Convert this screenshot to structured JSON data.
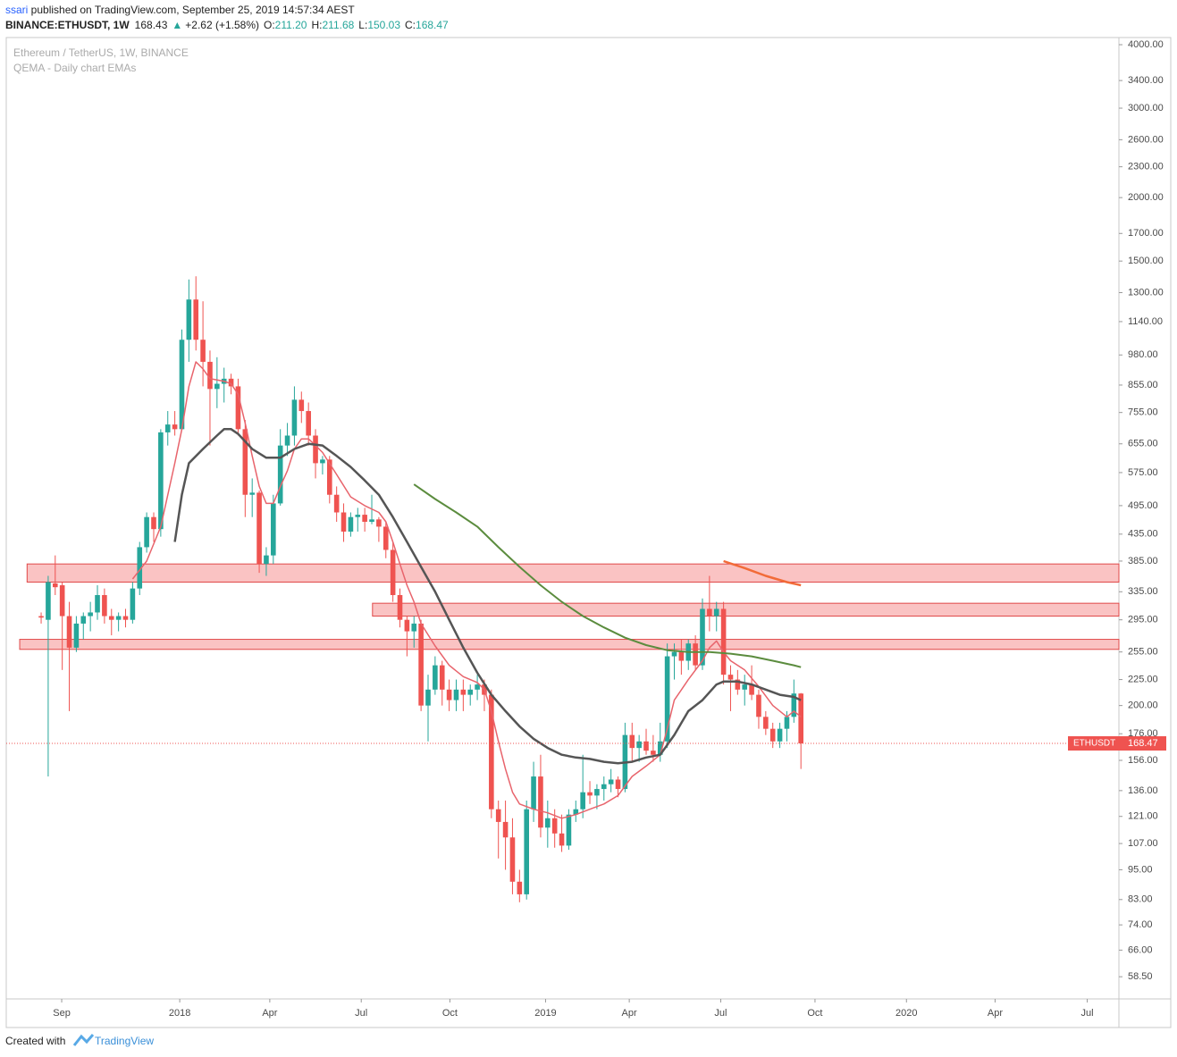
{
  "header": {
    "author": "ssari",
    "published": " published on TradingView.com, September 25, 2019 14:57:34 AEST",
    "symbol": "BINANCE:ETHUSDT, 1W",
    "last": "168.43",
    "change": "+2.62 (+1.58%)",
    "ohlc": [
      {
        "label": "O:",
        "value": "211.20"
      },
      {
        "label": "H:",
        "value": "211.68"
      },
      {
        "label": "L:",
        "value": "150.03"
      },
      {
        "label": "C:",
        "value": "168.47"
      }
    ]
  },
  "footer": {
    "created": "Created with",
    "brand": "TradingView"
  },
  "chart_data": {
    "type": "candlestick",
    "legend": [
      "Ethereum / TetherUS, 1W, BINANCE",
      "QEMA - Daily chart EMAs"
    ],
    "symbol_label": "ETHUSDT",
    "log_scale": true,
    "ylim": [
      52.9,
      4132
    ],
    "xlim": [
      -4.96,
      153.2
    ],
    "yticks": [
      {
        "value": 4000,
        "label": "4000.00"
      },
      {
        "value": 3400,
        "label": "3400.00"
      },
      {
        "value": 3000,
        "label": "3000.00"
      },
      {
        "value": 2600,
        "label": "2600.00"
      },
      {
        "value": 2300,
        "label": "2300.00"
      },
      {
        "value": 2000,
        "label": "2000.00"
      },
      {
        "value": 1700,
        "label": "1700.00"
      },
      {
        "value": 1500,
        "label": "1500.00"
      },
      {
        "value": 1300,
        "label": "1300.00"
      },
      {
        "value": 1140,
        "label": "1140.00"
      },
      {
        "value": 980,
        "label": "980.00"
      },
      {
        "value": 855,
        "label": "855.00"
      },
      {
        "value": 755,
        "label": "755.00"
      },
      {
        "value": 655,
        "label": "655.00"
      },
      {
        "value": 575,
        "label": "575.00"
      },
      {
        "value": 495,
        "label": "495.00"
      },
      {
        "value": 435,
        "label": "435.00"
      },
      {
        "value": 385,
        "label": "385.00"
      },
      {
        "value": 335,
        "label": "335.00"
      },
      {
        "value": 295,
        "label": "295.00"
      },
      {
        "value": 255,
        "label": "255.00"
      },
      {
        "value": 225,
        "label": "225.00"
      },
      {
        "value": 200,
        "label": "200.00"
      },
      {
        "value": 176,
        "label": "176.00"
      },
      {
        "value": 156,
        "label": "156.00"
      },
      {
        "value": 136,
        "label": "136.00"
      },
      {
        "value": 121,
        "label": "121.00"
      },
      {
        "value": 107,
        "label": "107.00"
      },
      {
        "value": 95,
        "label": "95.00"
      },
      {
        "value": 83,
        "label": "83.00"
      },
      {
        "value": 74,
        "label": "74.00"
      },
      {
        "value": 66,
        "label": "66.00"
      },
      {
        "value": 58.5,
        "label": "58.50"
      }
    ],
    "xticks": [
      {
        "value": 2.92,
        "label": "Sep"
      },
      {
        "value": 19.7,
        "label": "2018"
      },
      {
        "value": 32.5,
        "label": "Apr"
      },
      {
        "value": 45.5,
        "label": "Jul"
      },
      {
        "value": 58.1,
        "label": "Oct"
      },
      {
        "value": 71.7,
        "label": "2019"
      },
      {
        "value": 83.6,
        "label": "Apr"
      },
      {
        "value": 96.6,
        "label": "Jul"
      },
      {
        "value": 110.0,
        "label": "Oct"
      },
      {
        "value": 123.0,
        "label": "2020"
      },
      {
        "value": 135.6,
        "label": "Apr"
      },
      {
        "value": 148.7,
        "label": "Jul"
      }
    ],
    "up_color": "#26a69a",
    "down_color": "#ef5350",
    "series": [
      {
        "open": [
          300,
          295,
          348,
          345,
          300,
          260,
          290,
          300,
          305,
          330,
          300,
          295,
          300,
          295,
          340,
          410,
          470,
          445,
          690,
          715,
          700,
          1050,
          1260,
          1050,
          950,
          840,
          860,
          880,
          850,
          700,
          520,
          525,
          380,
          395,
          500,
          650,
          680,
          800,
          760,
          680,
          600,
          610,
          520,
          480,
          440,
          470,
          475,
          460,
          465,
          450,
          405,
          330,
          295,
          280,
          290,
          200,
          215,
          240,
          215,
          205,
          215,
          210,
          215,
          220,
          210,
          125,
          118,
          110,
          90,
          85,
          125,
          145,
          115,
          120,
          112,
          106,
          122,
          125,
          135,
          133,
          137,
          140,
          143,
          137,
          175,
          165,
          170,
          163,
          160,
          170,
          250,
          255,
          245,
          265,
          240,
          310,
          300,
          310,
          230,
          225,
          215,
          220,
          210,
          190,
          180,
          170,
          180,
          190,
          211.2
        ],
        "high": [
          305,
          360,
          395,
          350,
          320,
          300,
          305,
          320,
          345,
          340,
          310,
          305,
          310,
          350,
          420,
          480,
          480,
          700,
          760,
          760,
          1100,
          1380,
          1400,
          1250,
          1000,
          970,
          925,
          900,
          880,
          730,
          560,
          530,
          410,
          520,
          700,
          720,
          850,
          830,
          790,
          700,
          620,
          620,
          540,
          500,
          480,
          490,
          490,
          520,
          470,
          460,
          420,
          340,
          300,
          300,
          295,
          230,
          250,
          245,
          225,
          225,
          225,
          220,
          230,
          225,
          215,
          130,
          130,
          120,
          95,
          130,
          155,
          160,
          130,
          125,
          122,
          125,
          130,
          160,
          142,
          140,
          145,
          150,
          145,
          185,
          185,
          175,
          180,
          175,
          185,
          265,
          265,
          270,
          270,
          275,
          325,
          360,
          320,
          320,
          240,
          235,
          230,
          240,
          215,
          195,
          185,
          185,
          195,
          225,
          211.68
        ],
        "low": [
          290,
          145,
          330,
          235,
          195,
          255,
          270,
          280,
          295,
          290,
          275,
          280,
          285,
          290,
          330,
          400,
          420,
          430,
          650,
          680,
          700,
          950,
          1000,
          850,
          650,
          770,
          790,
          820,
          680,
          470,
          470,
          365,
          360,
          380,
          495,
          620,
          650,
          720,
          650,
          560,
          570,
          500,
          460,
          420,
          430,
          440,
          440,
          455,
          420,
          390,
          320,
          285,
          250,
          260,
          195,
          170,
          210,
          200,
          195,
          195,
          195,
          200,
          205,
          195,
          120,
          100,
          95,
          85,
          82,
          83,
          118,
          110,
          105,
          105,
          103,
          104,
          118,
          120,
          128,
          125,
          130,
          135,
          132,
          135,
          155,
          155,
          160,
          155,
          155,
          165,
          225,
          230,
          235,
          235,
          235,
          280,
          280,
          220,
          195,
          210,
          200,
          205,
          180,
          175,
          165,
          165,
          170,
          185,
          150.03
        ],
        "close": [
          298,
          350,
          342,
          300,
          260,
          290,
          300,
          305,
          330,
          300,
          295,
          300,
          295,
          340,
          410,
          470,
          445,
          690,
          715,
          700,
          1050,
          1260,
          1050,
          950,
          840,
          860,
          880,
          850,
          700,
          520,
          525,
          380,
          395,
          500,
          650,
          680,
          800,
          760,
          680,
          600,
          610,
          520,
          480,
          440,
          470,
          475,
          460,
          465,
          450,
          405,
          330,
          295,
          280,
          290,
          200,
          215,
          240,
          215,
          205,
          215,
          210,
          215,
          220,
          210,
          125,
          118,
          110,
          90,
          85,
          125,
          145,
          115,
          120,
          112,
          106,
          122,
          125,
          135,
          133,
          137,
          140,
          143,
          137,
          175,
          165,
          170,
          163,
          160,
          170,
          250,
          255,
          245,
          265,
          240,
          310,
          300,
          310,
          230,
          225,
          215,
          220,
          210,
          190,
          180,
          170,
          180,
          190,
          211.2,
          168.47
        ]
      }
    ],
    "lines": [
      {
        "color": "#e8646c",
        "x": [
          13,
          15,
          17,
          19,
          20,
          21,
          22,
          23,
          24,
          26,
          27,
          28,
          29,
          30,
          31,
          32,
          33,
          34,
          35,
          36,
          37,
          38,
          39,
          40,
          42,
          44,
          46,
          48,
          49,
          50,
          51,
          52,
          53,
          54,
          56,
          58,
          60,
          62,
          63,
          64,
          65,
          66,
          67,
          68,
          70,
          72,
          74,
          76,
          78,
          80,
          82,
          84,
          86,
          88,
          89,
          90,
          92,
          94,
          95,
          96,
          97,
          98,
          100,
          102,
          104,
          106,
          107,
          108
        ],
        "values": [
          355,
          385,
          450,
          600,
          700,
          850,
          950,
          920,
          880,
          870,
          860,
          820,
          720,
          620,
          540,
          500,
          500,
          540,
          580,
          640,
          670,
          670,
          650,
          630,
          570,
          515,
          495,
          480,
          460,
          420,
          380,
          345,
          320,
          290,
          262,
          240,
          228,
          222,
          215,
          195,
          170,
          150,
          135,
          128,
          125,
          123,
          120,
          122,
          125,
          128,
          133,
          145,
          152,
          160,
          180,
          205,
          225,
          245,
          260,
          268,
          255,
          245,
          235,
          218,
          200,
          190,
          195,
          190
        ]
      },
      {
        "color": "#555555",
        "x": [
          19,
          20,
          21,
          23,
          25,
          26,
          27,
          28,
          30,
          32,
          34,
          36,
          38,
          40,
          42,
          44,
          46,
          48,
          50,
          52,
          54,
          56,
          58,
          60,
          62,
          64,
          66,
          68,
          70,
          72,
          74,
          76,
          78,
          80,
          82,
          84,
          86,
          88,
          90,
          92,
          94,
          96,
          97,
          99,
          101,
          103,
          105,
          107,
          108
        ],
        "values": [
          420,
          520,
          600,
          640,
          680,
          700,
          700,
          685,
          640,
          615,
          615,
          640,
          655,
          650,
          620,
          590,
          555,
          520,
          470,
          420,
          375,
          335,
          295,
          260,
          232,
          210,
          195,
          182,
          172,
          165,
          160,
          158,
          157,
          155,
          154,
          155,
          158,
          160,
          175,
          195,
          205,
          220,
          223,
          223,
          220,
          215,
          210,
          208,
          205
        ]
      },
      {
        "color": "#5b8c3e",
        "x": [
          53,
          56,
          59,
          62,
          65,
          68,
          71,
          74,
          77,
          80,
          83,
          86,
          89,
          92,
          95,
          98,
          101,
          104,
          107,
          108
        ],
        "values": [
          545,
          510,
          480,
          450,
          410,
          375,
          345,
          320,
          300,
          285,
          272,
          263,
          257,
          255,
          255,
          253,
          250,
          245,
          240,
          238
        ]
      },
      {
        "color": "#f26b38",
        "x": [
          97,
          100,
          103,
          106,
          108
        ],
        "values": [
          385,
          373,
          360,
          350,
          345
        ]
      }
    ],
    "zones": [
      {
        "from": -2.0,
        "low": 350,
        "high": 380
      },
      {
        "from": 47.1,
        "low": 300,
        "high": 318
      },
      {
        "from": -3.05,
        "low": 258,
        "high": 270
      }
    ],
    "zone_color": "#f9b9b9",
    "zone_border": "#e04848"
  }
}
